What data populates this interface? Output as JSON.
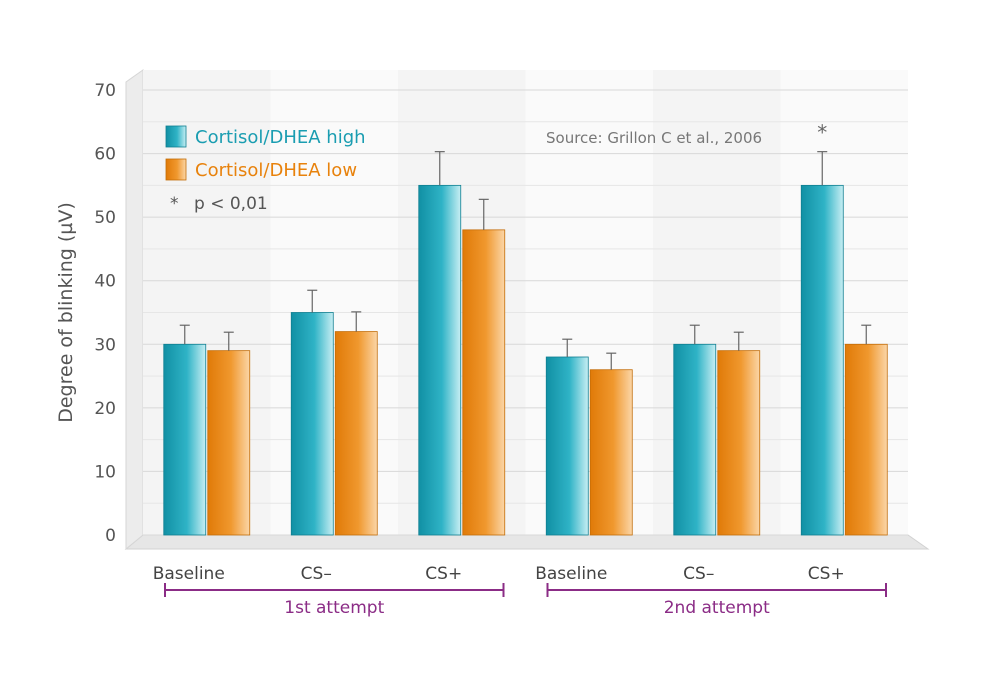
{
  "chart_data": {
    "type": "bar",
    "ylabel": "Degree of blinking (µV)",
    "ylim": [
      0,
      70
    ],
    "yticks": [
      0,
      10,
      20,
      30,
      40,
      50,
      60,
      70
    ],
    "grid": true,
    "categories": [
      "Baseline",
      "CS–",
      "CS+",
      "Baseline",
      "CS–",
      "CS+"
    ],
    "groups": [
      {
        "label": "1st attempt",
        "categories": [
          0,
          1,
          2
        ]
      },
      {
        "label": "2nd attempt",
        "categories": [
          3,
          4,
          5
        ]
      }
    ],
    "series": [
      {
        "name": "Cortisol/DHEA high",
        "color": "#1a9db1",
        "values": [
          30,
          35,
          55,
          28,
          30,
          55
        ],
        "errors": [
          3,
          3.5,
          5.3,
          2.8,
          3,
          5.3
        ]
      },
      {
        "name": "Cortisol/DHEA low",
        "color": "#e8820c",
        "values": [
          29,
          32,
          48,
          26,
          29,
          30
        ],
        "errors": [
          2.9,
          3.1,
          4.8,
          2.6,
          2.9,
          3
        ]
      }
    ],
    "significance": {
      "marker": "*",
      "label": "p < 0,01",
      "category_index": 5
    },
    "legend_position": "top-left",
    "source": "Source: Grillon C et al., 2006"
  }
}
